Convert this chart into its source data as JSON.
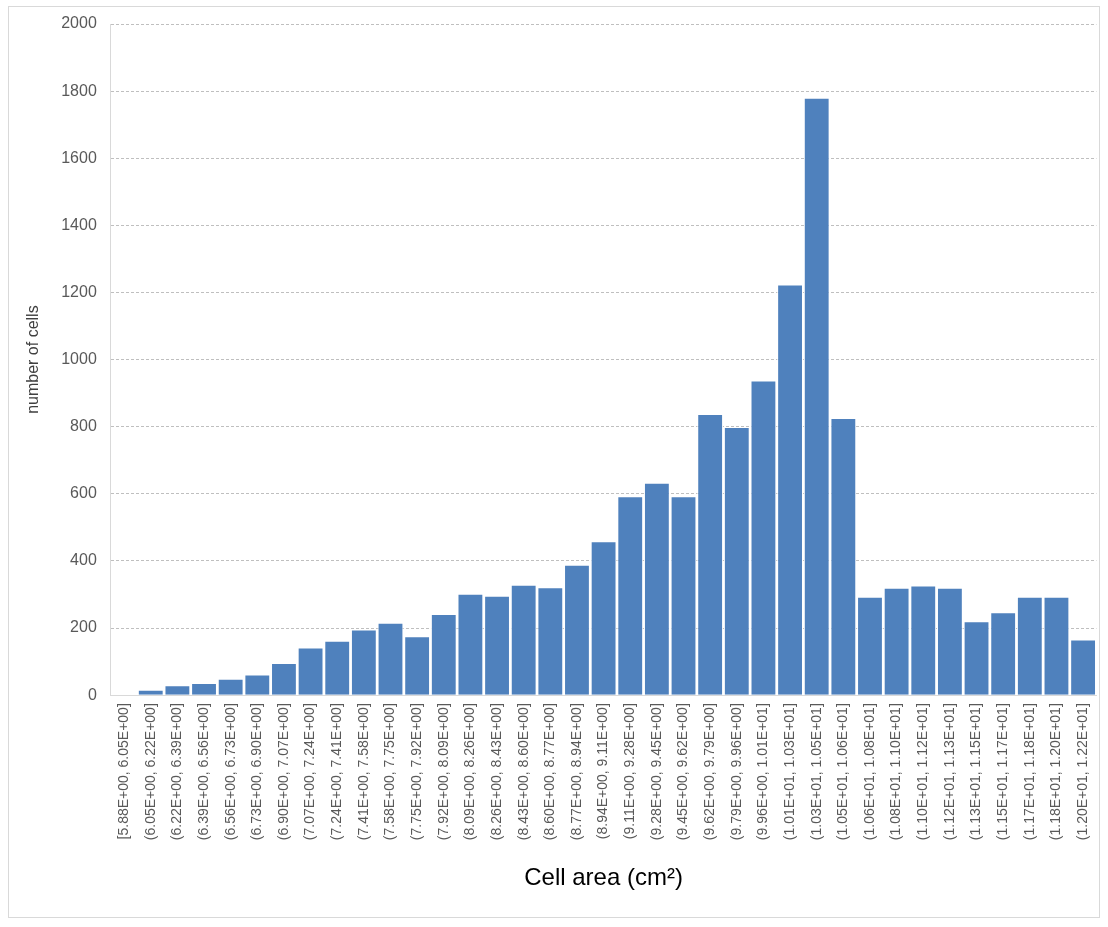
{
  "chart_data": {
    "type": "bar",
    "xlabel": "Cell area (cm²)",
    "ylabel": "number of cells",
    "categories": [
      "[5.88E+00, 6.05E+00]",
      "(6.05E+00, 6.22E+00]",
      "(6.22E+00, 6.39E+00]",
      "(6.39E+00, 6.56E+00]",
      "(6.56E+00, 6.73E+00]",
      "(6.73E+00, 6.90E+00]",
      "(6.90E+00, 7.07E+00]",
      "(7.07E+00, 7.24E+00]",
      "(7.24E+00, 7.41E+00]",
      "(7.41E+00, 7.58E+00]",
      "(7.58E+00, 7.75E+00]",
      "(7.75E+00, 7.92E+00]",
      "(7.92E+00, 8.09E+00]",
      "(8.09E+00, 8.26E+00]",
      "(8.26E+00, 8.43E+00]",
      "(8.43E+00, 8.60E+00]",
      "(8.60E+00, 8.77E+00]",
      "(8.77E+00, 8.94E+00]",
      "(8.94E+00, 9.11E+00]",
      "(9.11E+00, 9.28E+00]",
      "(9.28E+00, 9.45E+00]",
      "(9.45E+00, 9.62E+00]",
      "(9.62E+00, 9.79E+00]",
      "(9.79E+00, 9.96E+00]",
      "(9.96E+00, 1.01E+01]",
      "(1.01E+01, 1.03E+01]",
      "(1.03E+01, 1.05E+01]",
      "(1.05E+01, 1.06E+01]",
      "(1.06E+01, 1.08E+01]",
      "(1.08E+01, 1.10E+01]",
      "(1.10E+01, 1.12E+01]",
      "(1.12E+01, 1.13E+01]",
      "(1.13E+01, 1.15E+01]",
      "(1.15E+01, 1.17E+01]",
      "(1.17E+01, 1.18E+01]",
      "(1.18E+01, 1.20E+01]",
      "(1.20E+01, 1.22E+01]"
    ],
    "values": [
      0,
      16,
      30,
      36,
      49,
      62,
      96,
      142,
      162,
      196,
      216,
      176,
      242,
      302,
      296,
      329,
      322,
      389,
      459,
      593,
      633,
      593,
      838,
      799,
      938,
      1224,
      1780,
      826,
      293,
      320,
      327,
      320,
      220,
      247,
      293,
      293,
      166
    ],
    "color": "#4f81bd",
    "ylim": [
      0,
      2000
    ],
    "yticks": [
      0,
      200,
      400,
      600,
      800,
      1000,
      1200,
      1400,
      1600,
      1800,
      2000
    ],
    "grid": "y"
  }
}
